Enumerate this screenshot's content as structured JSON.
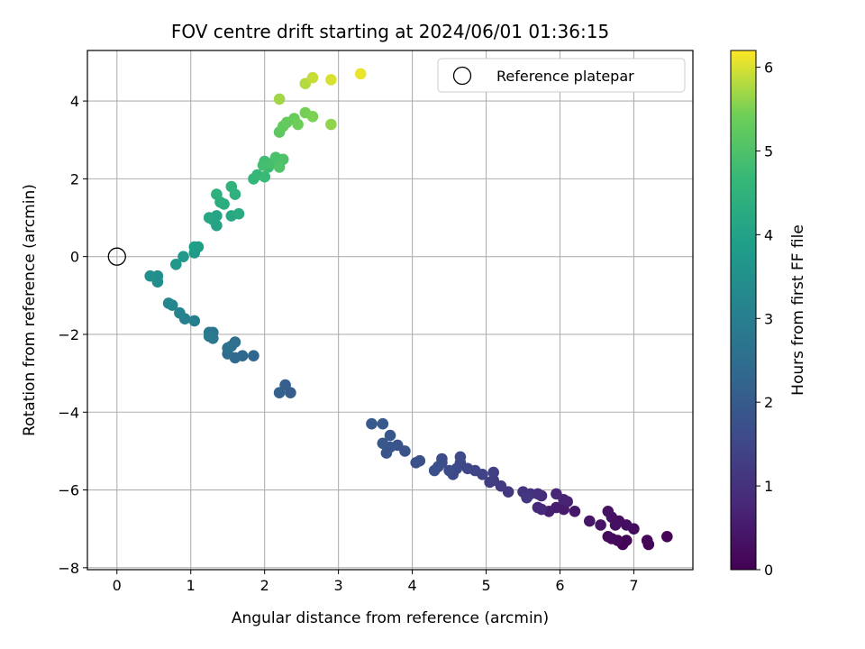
{
  "chart_data": {
    "type": "scatter",
    "title": "FOV centre drift starting at 2024/06/01 01:36:15",
    "xlabel": "Angular distance from reference (arcmin)",
    "ylabel": "Rotation from reference (arcmin)",
    "xlim": [
      -0.4,
      7.8
    ],
    "ylim": [
      -8.05,
      5.3
    ],
    "xticks": [
      0,
      1,
      2,
      3,
      4,
      5,
      6,
      7
    ],
    "yticks": [
      -8,
      -6,
      -4,
      -2,
      0,
      2,
      4
    ],
    "grid": true,
    "legend": {
      "placement": "top-right",
      "entries": [
        "Reference platepar"
      ]
    },
    "reference_point": {
      "x": 0,
      "y": 0,
      "label": "Reference platepar"
    },
    "colorbar": {
      "label": "Hours from first FF file",
      "range": [
        0,
        6.2
      ],
      "ticks": [
        0,
        1,
        2,
        3,
        4,
        5,
        6
      ],
      "colormap": "viridis"
    },
    "points": [
      [
        6.85,
        -7.4,
        0.02
      ],
      [
        6.9,
        -7.3,
        0.05
      ],
      [
        7.2,
        -7.4,
        0.08
      ],
      [
        7.45,
        -7.2,
        0.1
      ],
      [
        7.18,
        -7.3,
        0.12
      ],
      [
        6.78,
        -7.3,
        0.15
      ],
      [
        6.7,
        -7.25,
        0.18
      ],
      [
        6.65,
        -7.2,
        0.2
      ],
      [
        7.0,
        -7.0,
        0.22
      ],
      [
        6.8,
        -6.8,
        0.25
      ],
      [
        6.9,
        -6.9,
        0.28
      ],
      [
        6.75,
        -6.9,
        0.3
      ],
      [
        6.7,
        -6.7,
        0.32
      ],
      [
        6.65,
        -6.55,
        0.35
      ],
      [
        6.55,
        -6.9,
        0.38
      ],
      [
        6.4,
        -6.8,
        0.4
      ],
      [
        6.2,
        -6.55,
        0.45
      ],
      [
        6.05,
        -6.5,
        0.5
      ],
      [
        5.95,
        -6.45,
        0.55
      ],
      [
        5.85,
        -6.55,
        0.6
      ],
      [
        6.1,
        -6.3,
        0.65
      ],
      [
        6.05,
        -6.25,
        0.7
      ],
      [
        5.95,
        -6.1,
        0.75
      ],
      [
        5.75,
        -6.5,
        0.8
      ],
      [
        5.7,
        -6.45,
        0.85
      ],
      [
        5.75,
        -6.15,
        0.9
      ],
      [
        5.7,
        -6.1,
        0.95
      ],
      [
        5.6,
        -6.1,
        1.0
      ],
      [
        5.5,
        -6.05,
        1.05
      ],
      [
        5.55,
        -6.2,
        1.1
      ],
      [
        5.3,
        -6.05,
        1.15
      ],
      [
        5.2,
        -5.9,
        1.2
      ],
      [
        5.1,
        -5.75,
        1.25
      ],
      [
        5.05,
        -5.8,
        1.3
      ],
      [
        5.1,
        -5.55,
        1.35
      ],
      [
        4.95,
        -5.6,
        1.4
      ],
      [
        4.85,
        -5.5,
        1.45
      ],
      [
        4.75,
        -5.45,
        1.5
      ],
      [
        4.65,
        -5.3,
        1.5
      ],
      [
        4.6,
        -5.45,
        1.55
      ],
      [
        4.55,
        -5.6,
        1.55
      ],
      [
        4.65,
        -5.15,
        1.6
      ],
      [
        4.5,
        -5.5,
        1.6
      ],
      [
        4.4,
        -5.3,
        1.65
      ],
      [
        4.4,
        -5.2,
        1.65
      ],
      [
        4.35,
        -5.4,
        1.7
      ],
      [
        4.3,
        -5.5,
        1.7
      ],
      [
        4.1,
        -5.25,
        1.75
      ],
      [
        4.05,
        -5.3,
        1.75
      ],
      [
        3.9,
        -5.0,
        1.8
      ],
      [
        3.8,
        -4.85,
        1.8
      ],
      [
        3.7,
        -4.9,
        1.85
      ],
      [
        3.65,
        -5.05,
        1.85
      ],
      [
        3.6,
        -4.8,
        1.9
      ],
      [
        3.7,
        -4.6,
        1.9
      ],
      [
        3.6,
        -4.3,
        1.95
      ],
      [
        3.45,
        -4.3,
        1.95
      ],
      [
        2.35,
        -3.5,
        2.05
      ],
      [
        2.28,
        -3.3,
        2.1
      ],
      [
        2.2,
        -3.5,
        2.15
      ],
      [
        1.85,
        -2.55,
        2.3
      ],
      [
        1.7,
        -2.55,
        2.35
      ],
      [
        1.6,
        -2.6,
        2.4
      ],
      [
        1.5,
        -2.5,
        2.45
      ],
      [
        1.55,
        -2.3,
        2.5
      ],
      [
        1.6,
        -2.2,
        2.55
      ],
      [
        1.5,
        -2.35,
        2.6
      ],
      [
        1.3,
        -1.95,
        2.7
      ],
      [
        1.25,
        -1.95,
        2.75
      ],
      [
        1.3,
        -2.1,
        2.8
      ],
      [
        1.25,
        -2.05,
        2.85
      ],
      [
        1.05,
        -1.65,
        3.0
      ],
      [
        0.92,
        -1.6,
        3.05
      ],
      [
        0.85,
        -1.45,
        3.1
      ],
      [
        0.75,
        -1.25,
        3.15
      ],
      [
        0.7,
        -1.2,
        3.2
      ],
      [
        0.55,
        -0.65,
        3.4
      ],
      [
        0.55,
        -0.5,
        3.45
      ],
      [
        0.45,
        -0.5,
        3.5
      ],
      [
        0.8,
        -0.2,
        3.7
      ],
      [
        0.9,
        0.0,
        3.75
      ],
      [
        1.05,
        0.1,
        3.8
      ],
      [
        1.1,
        0.25,
        3.85
      ],
      [
        1.05,
        0.25,
        3.9
      ],
      [
        1.35,
        0.8,
        4.0
      ],
      [
        1.3,
        0.95,
        4.05
      ],
      [
        1.35,
        1.05,
        4.1
      ],
      [
        1.25,
        1.0,
        4.15
      ],
      [
        1.55,
        1.05,
        4.2
      ],
      [
        1.65,
        1.1,
        4.25
      ],
      [
        1.4,
        1.4,
        4.3
      ],
      [
        1.45,
        1.35,
        4.35
      ],
      [
        1.35,
        1.6,
        4.4
      ],
      [
        1.6,
        1.6,
        4.45
      ],
      [
        1.55,
        1.8,
        4.5
      ],
      [
        1.85,
        2.0,
        4.6
      ],
      [
        1.9,
        2.1,
        4.65
      ],
      [
        2.0,
        2.05,
        4.7
      ],
      [
        2.05,
        2.3,
        4.75
      ],
      [
        2.0,
        2.45,
        4.8
      ],
      [
        1.98,
        2.35,
        4.85
      ],
      [
        2.1,
        2.4,
        4.9
      ],
      [
        2.15,
        2.55,
        4.95
      ],
      [
        2.25,
        2.5,
        5.0
      ],
      [
        2.2,
        2.3,
        5.05
      ],
      [
        2.2,
        3.2,
        5.2
      ],
      [
        2.25,
        3.35,
        5.25
      ],
      [
        2.3,
        3.45,
        5.3
      ],
      [
        2.4,
        3.55,
        5.35
      ],
      [
        2.45,
        3.4,
        5.4
      ],
      [
        2.55,
        3.7,
        5.45
      ],
      [
        2.65,
        3.6,
        5.5
      ],
      [
        2.9,
        3.4,
        5.6
      ],
      [
        2.2,
        4.05,
        5.7
      ],
      [
        2.55,
        4.45,
        5.8
      ],
      [
        2.65,
        4.6,
        5.9
      ],
      [
        2.9,
        4.55,
        6.0
      ],
      [
        3.3,
        4.7,
        6.1
      ]
    ]
  }
}
